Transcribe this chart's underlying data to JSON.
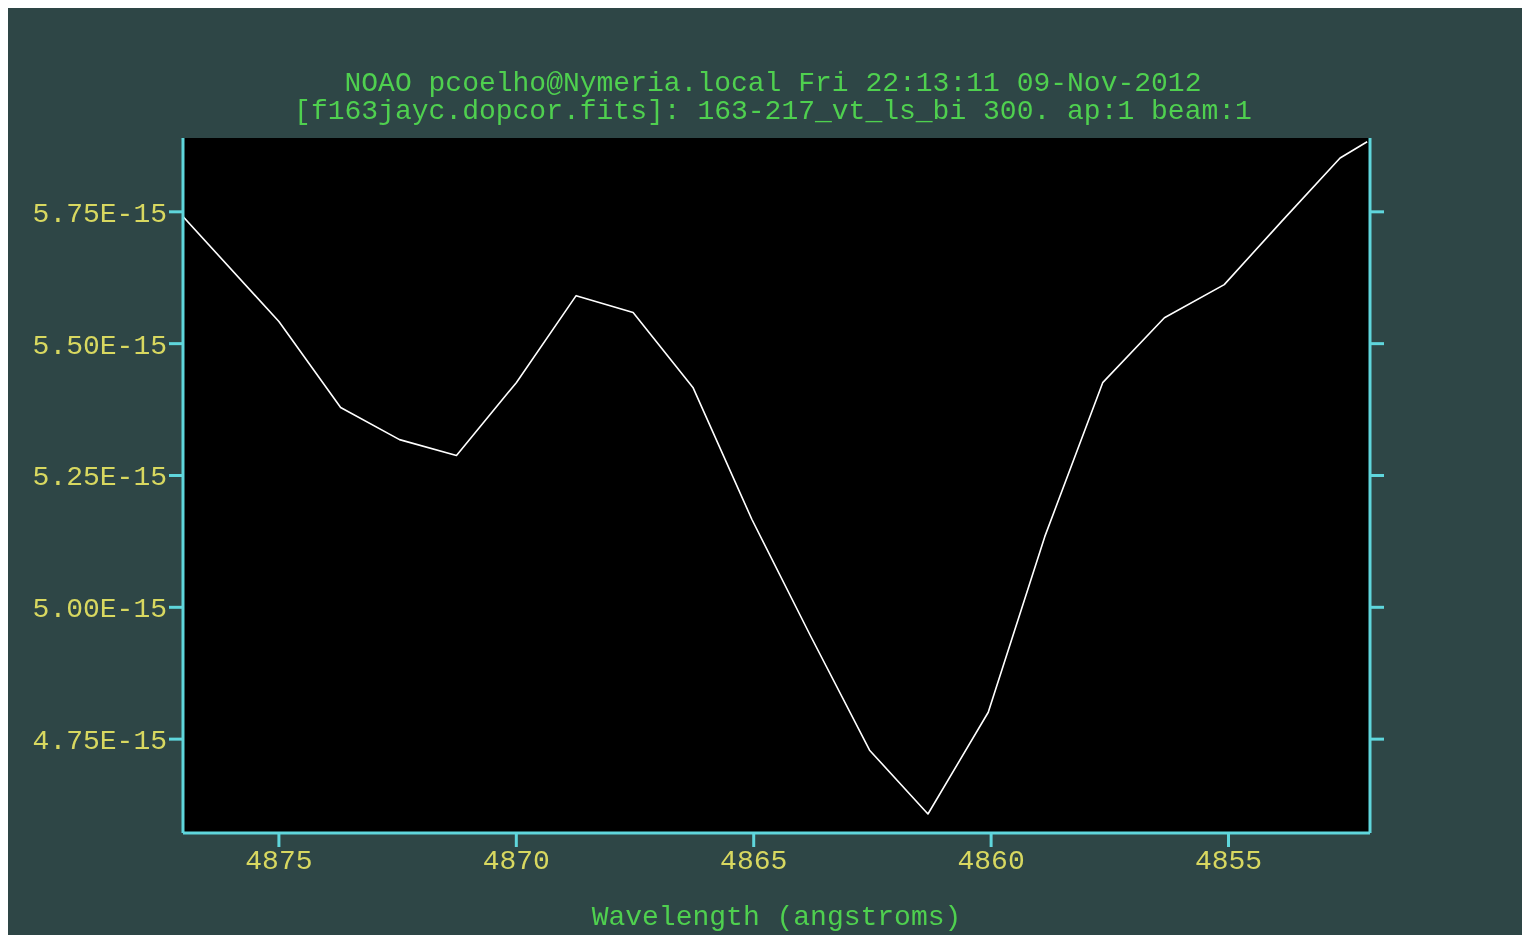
{
  "chart_data": {
    "type": "line",
    "title": "NOAO pcoelho@Nymeria.local Fri 22:13:11 09-Nov-2012",
    "subtitle": "[f163jayc.dopcor.fits]: 163-217_vt_ls_bi 300. ap:1 beam:1",
    "xlabel": "Wavelength (angstroms)",
    "x": [
      4877.02,
      4875.0,
      4873.7,
      4872.46,
      4871.26,
      4870.0,
      4868.74,
      4867.54,
      4866.28,
      4865.04,
      4863.81,
      4862.56,
      4861.33,
      4860.06,
      4858.87,
      4857.65,
      4856.35,
      4855.09,
      4853.89,
      4852.65,
      4852.08
    ],
    "series": [
      {
        "color": "#ffffff",
        "values": [
          5.741e-15,
          5.542e-15,
          5.379e-15,
          5.318e-15,
          5.288e-15,
          5.426e-15,
          5.591e-15,
          5.559e-15,
          5.417e-15,
          5.167e-15,
          4.947e-15,
          4.729e-15,
          4.608e-15,
          4.801e-15,
          5.134e-15,
          5.426e-15,
          5.549e-15,
          5.612e-15,
          5.731e-15,
          5.852e-15,
          5.883e-15
        ]
      }
    ],
    "xlim": [
      4877.02,
      4852.02
    ],
    "xticks": [
      4875,
      4870,
      4865,
      4860,
      4855
    ],
    "ylim": [
      4.572e-15,
      5.89e-15
    ],
    "yticks": [
      {
        "value": 4.75e-15,
        "label": "4.75E-15"
      },
      {
        "value": 5e-15,
        "label": "5.00E-15"
      },
      {
        "value": 5.25e-15,
        "label": "5.25E-15"
      },
      {
        "value": 5.5e-15,
        "label": "5.50E-15"
      },
      {
        "value": 5.75e-15,
        "label": "5.75E-15"
      }
    ],
    "grid": false,
    "legend": false
  }
}
